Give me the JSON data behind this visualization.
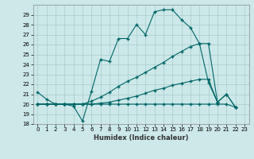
{
  "xlabel": "Humidex (Indice chaleur)",
  "background_color": "#cce8e8",
  "grid_color": "#aacccc",
  "line_color": "#006666",
  "xlim": [
    -0.5,
    23.5
  ],
  "ylim": [
    18,
    30
  ],
  "yticks": [
    18,
    19,
    20,
    21,
    22,
    23,
    24,
    25,
    26,
    27,
    28,
    29
  ],
  "xticks": [
    0,
    1,
    2,
    3,
    4,
    5,
    6,
    7,
    8,
    9,
    10,
    11,
    12,
    13,
    14,
    15,
    16,
    17,
    18,
    19,
    20,
    21,
    22,
    23
  ],
  "line1_x": [
    0,
    1,
    2,
    3,
    4,
    5,
    6,
    7,
    8,
    9,
    10,
    11,
    12,
    13,
    14,
    15,
    16,
    17,
    18,
    19,
    20,
    21,
    22
  ],
  "line1_y": [
    21.2,
    20.5,
    20.0,
    20.0,
    19.8,
    18.3,
    21.3,
    24.5,
    24.3,
    26.6,
    26.6,
    28.0,
    27.0,
    29.3,
    29.5,
    29.5,
    28.5,
    27.7,
    26.1,
    22.2,
    20.2,
    21.0,
    19.7
  ],
  "line2_x": [
    0,
    1,
    2,
    3,
    4,
    5,
    6,
    7,
    8,
    9,
    10,
    11,
    12,
    13,
    14,
    15,
    16,
    17,
    18,
    19,
    20
  ],
  "line2_y": [
    20.0,
    20.0,
    20.0,
    20.0,
    20.0,
    20.0,
    20.3,
    20.7,
    21.2,
    21.8,
    22.3,
    22.7,
    23.2,
    23.7,
    24.2,
    24.8,
    25.3,
    25.8,
    26.1,
    26.1,
    20.2
  ],
  "line3_x": [
    0,
    1,
    2,
    3,
    4,
    5,
    6,
    7,
    8,
    9,
    10,
    11,
    12,
    13,
    14,
    15,
    16,
    17,
    18,
    19,
    20,
    21,
    22
  ],
  "line3_y": [
    20.0,
    20.0,
    20.0,
    20.0,
    20.0,
    20.0,
    20.0,
    20.1,
    20.2,
    20.4,
    20.6,
    20.8,
    21.1,
    21.4,
    21.6,
    21.9,
    22.1,
    22.3,
    22.5,
    22.5,
    20.2,
    21.0,
    19.7
  ],
  "line4_x": [
    0,
    1,
    2,
    3,
    4,
    5,
    6,
    7,
    8,
    9,
    10,
    11,
    12,
    13,
    14,
    15,
    16,
    17,
    18,
    19,
    20,
    21,
    22
  ],
  "line4_y": [
    20.0,
    20.0,
    20.0,
    20.0,
    20.0,
    20.0,
    20.0,
    20.0,
    20.0,
    20.0,
    20.0,
    20.0,
    20.0,
    20.0,
    20.0,
    20.0,
    20.0,
    20.0,
    20.0,
    20.0,
    20.0,
    20.0,
    19.7
  ]
}
